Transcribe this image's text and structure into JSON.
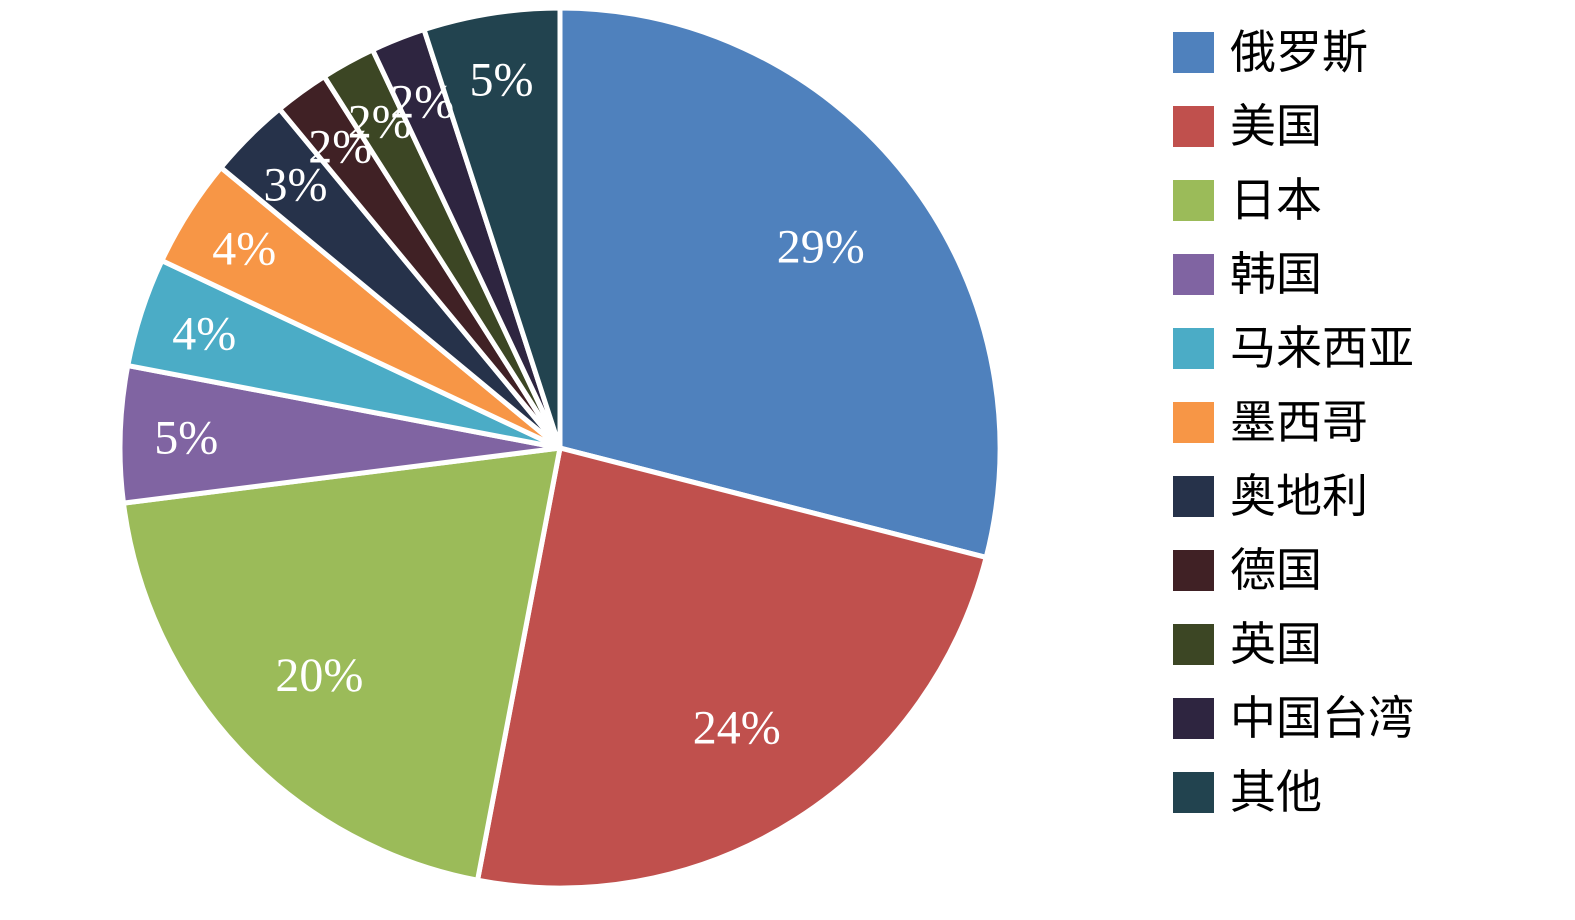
{
  "chart_data": {
    "type": "pie",
    "title": "",
    "legend_position": "right",
    "direction": "clockwise",
    "start_angle_deg": 0,
    "background": "#FFFFFF",
    "slice_label_color": "#FFFFFF",
    "separator_color": "#FFFFFF",
    "categories": [
      "俄罗斯",
      "美国",
      "日本",
      "韩国",
      "马来西亚",
      "墨西哥",
      "奥地利",
      "德国",
      "英国",
      "中国台湾",
      "其他"
    ],
    "values": [
      29,
      24,
      20,
      5,
      4,
      4,
      3,
      2,
      2,
      2,
      5
    ],
    "slice_labels": [
      "29%",
      "24%",
      "20%",
      "5%",
      "4%",
      "4%",
      "3%",
      "2%",
      "2%",
      "2%",
      "5%"
    ],
    "colors": [
      "#4F81BD",
      "#C0504D",
      "#9BBB59",
      "#8064A2",
      "#4BACC6",
      "#F79646",
      "#26324A",
      "#402125",
      "#3C4624",
      "#2E2540",
      "#22434F"
    ]
  }
}
